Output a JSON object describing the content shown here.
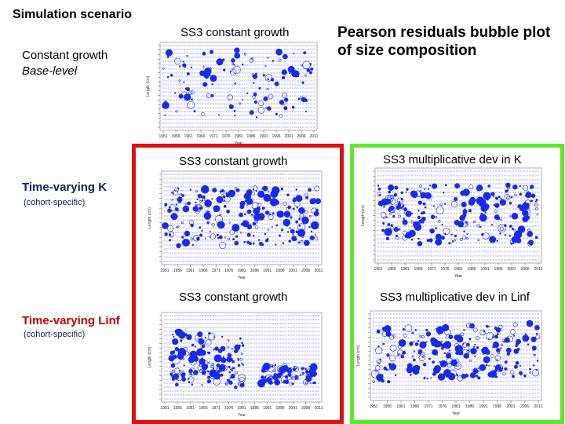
{
  "header": {
    "scenario_title": "Simulation scenario",
    "plot_title": "Pearson residuals bubble plot of size composition"
  },
  "rows": [
    {
      "label": "Constant growth",
      "sublabel": "Base-level"
    },
    {
      "label": "Time-varying K",
      "sublabel": "(cohort-specific)"
    },
    {
      "label": "Time-varying Linf",
      "sublabel": "(cohort-specific)"
    }
  ],
  "panels": {
    "base_constant": {
      "title": "SS3 constant growth"
    },
    "k_constant": {
      "title": "SS3 constant growth"
    },
    "k_multiplicative": {
      "title": "SS3 multiplicative dev in K"
    },
    "linf_constant": {
      "title": "SS3 constant growth"
    },
    "linf_multiplicative": {
      "title": "SS3 multiplicative dev in Linf"
    }
  },
  "plot_axis": {
    "xlabel": "Year",
    "ylabel": "Length (cm)",
    "x_ticks_a": [
      "1951",
      "1956",
      "1961",
      "1966",
      "1971",
      "1976",
      "1981",
      "1986",
      "1991",
      "1996",
      "2001",
      "2006",
      "2011"
    ],
    "x_ticks_b": [
      "1951",
      "1956",
      "1961",
      "1966",
      "1971",
      "1976",
      "1981",
      "1986",
      "1991",
      "1996",
      "2001",
      "2006",
      "2011"
    ]
  },
  "colors": {
    "bubble": "#1a2be8",
    "red_frame": "#e01010",
    "green_frame": "#5ee82c",
    "row_label": "#0a1f5c",
    "linf_label": "#c00000"
  }
}
